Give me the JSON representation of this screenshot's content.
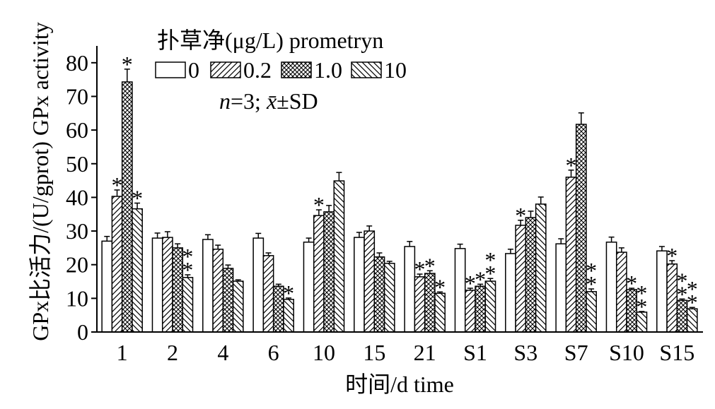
{
  "chart_data": {
    "type": "bar",
    "xlabel": "时间/d time",
    "ylabel": "GPx比活力/(U/gprot) GPx activity",
    "ylim": [
      0,
      85
    ],
    "yticks": [
      0,
      10,
      20,
      30,
      40,
      50,
      60,
      70,
      80
    ],
    "grid": false,
    "categories": [
      "1",
      "2",
      "4",
      "6",
      "10",
      "15",
      "21",
      "S1",
      "S3",
      "S7",
      "S10",
      "S15"
    ],
    "legend": {
      "title": "扑草净(μg/L) prometryn",
      "placement": "top-left"
    },
    "annotation": {
      "n_symbol": "n",
      "n_value": "=3; ",
      "mean_symbol": "x̄",
      "spread": "±SD"
    },
    "series": [
      {
        "name": "0",
        "pattern": "none",
        "values": [
          27.0,
          27.9,
          27.5,
          27.9,
          26.7,
          28.1,
          25.4,
          24.8,
          23.3,
          26.2,
          26.7,
          24.1
        ],
        "sd": [
          1.4,
          1.5,
          1.4,
          1.4,
          1.2,
          1.5,
          1.5,
          1.3,
          1.3,
          1.5,
          1.5,
          1.3
        ],
        "sig": [
          [],
          [],
          [],
          [],
          [],
          [],
          [],
          [],
          [],
          [],
          [],
          []
        ]
      },
      {
        "name": "0.2",
        "pattern": "forward-diagonal",
        "values": [
          40.3,
          28.1,
          24.6,
          22.7,
          34.6,
          30.0,
          16.4,
          12.4,
          31.7,
          46.0,
          23.7,
          20.2
        ],
        "sd": [
          1.9,
          1.7,
          1.2,
          0.8,
          1.7,
          1.5,
          0.8,
          0.6,
          1.5,
          2.1,
          1.3,
          1.0
        ],
        "sig": [
          [
            "*"
          ],
          [],
          [],
          [],
          [
            "*"
          ],
          [],
          [
            "*"
          ],
          [
            "*"
          ],
          [
            "*"
          ],
          [
            "*"
          ],
          [],
          [
            "*"
          ]
        ]
      },
      {
        "name": "1.0",
        "pattern": "crosshatch",
        "values": [
          74.3,
          25.0,
          18.9,
          13.6,
          35.7,
          22.3,
          17.4,
          13.6,
          34.0,
          61.7,
          12.6,
          9.4
        ],
        "sd": [
          3.8,
          1.2,
          1.0,
          0.6,
          1.9,
          1.2,
          0.8,
          0.6,
          1.9,
          3.4,
          0.4,
          0.4
        ],
        "sig": [
          [
            "*"
          ],
          [],
          [],
          [],
          [],
          [],
          [
            "*"
          ],
          [
            "*"
          ],
          [],
          [],
          [
            "*"
          ],
          [
            "*",
            "*"
          ]
        ]
      },
      {
        "name": "10",
        "pattern": "backward-diagonal",
        "values": [
          36.6,
          16.2,
          15.1,
          9.7,
          44.9,
          20.4,
          11.5,
          15.1,
          38.0,
          12.0,
          5.9,
          6.9
        ],
        "sd": [
          1.7,
          0.8,
          0.4,
          0.4,
          2.5,
          0.6,
          0.4,
          0.8,
          2.1,
          0.8,
          0.2,
          0.4
        ],
        "sig": [
          [
            "*"
          ],
          [
            "*",
            "*"
          ],
          [],
          [
            "*"
          ],
          [],
          [],
          [
            "*"
          ],
          [
            "*",
            "*"
          ],
          [],
          [
            "*",
            "*"
          ],
          [
            "*",
            "*"
          ],
          [
            "*",
            "*"
          ]
        ]
      }
    ]
  }
}
